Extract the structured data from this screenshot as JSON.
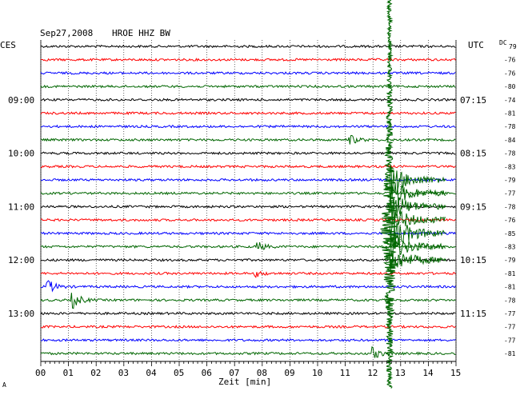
{
  "header": {
    "date": "Sep27,2008",
    "station": "HROE HHZ BW",
    "left_tz": "CES",
    "right_tz": "UTC",
    "dc_label": "DC"
  },
  "chart_data": {
    "type": "line",
    "title": "Sep27,2008   HROE HHZ BW",
    "xlabel": "Zeit [min]",
    "xlim": [
      0,
      15
    ],
    "x_ticks": [
      "00",
      "01",
      "02",
      "03",
      "04",
      "05",
      "06",
      "07",
      "08",
      "09",
      "10",
      "11",
      "12",
      "13",
      "14",
      "15"
    ],
    "trace_count": 24,
    "trace_colors": [
      "#000000",
      "#ff0000",
      "#0000ff",
      "#006600"
    ],
    "left_time_labels": [
      {
        "trace": 4,
        "label": "09:00"
      },
      {
        "trace": 8,
        "label": "10:00"
      },
      {
        "trace": 12,
        "label": "11:00"
      },
      {
        "trace": 16,
        "label": "12:00"
      },
      {
        "trace": 20,
        "label": "13:00"
      }
    ],
    "right_time_labels": [
      {
        "trace": 4,
        "label": "07:15"
      },
      {
        "trace": 8,
        "label": "08:15"
      },
      {
        "trace": 12,
        "label": "09:15"
      },
      {
        "trace": 16,
        "label": "10:15"
      },
      {
        "trace": 20,
        "label": "11:15"
      }
    ],
    "dc_offsets": [
      79,
      -76,
      -76,
      -80,
      -74,
      -81,
      -78,
      -84,
      -78,
      -83,
      -79,
      -77,
      -78,
      -76,
      -85,
      -83,
      -79,
      -81,
      -81,
      -78,
      -77,
      -77,
      -77,
      -81
    ],
    "events": [
      {
        "trace": 7,
        "minute": 11.2,
        "amp": 0.6
      },
      {
        "trace": 15,
        "minute": 7.9,
        "amp": 0.5
      },
      {
        "trace": 17,
        "minute": 7.8,
        "amp": 0.4
      },
      {
        "trace": 18,
        "minute": 0.3,
        "amp": 0.8
      },
      {
        "trace": 19,
        "minute": 1.2,
        "amp": 1.0
      },
      {
        "trace": 23,
        "minute": 12.0,
        "amp": 0.8
      }
    ],
    "earthquake": {
      "minute": 12.6,
      "start_trace": 0,
      "end_trace": 23
    }
  },
  "footer": {
    "corner_mark": "A"
  }
}
